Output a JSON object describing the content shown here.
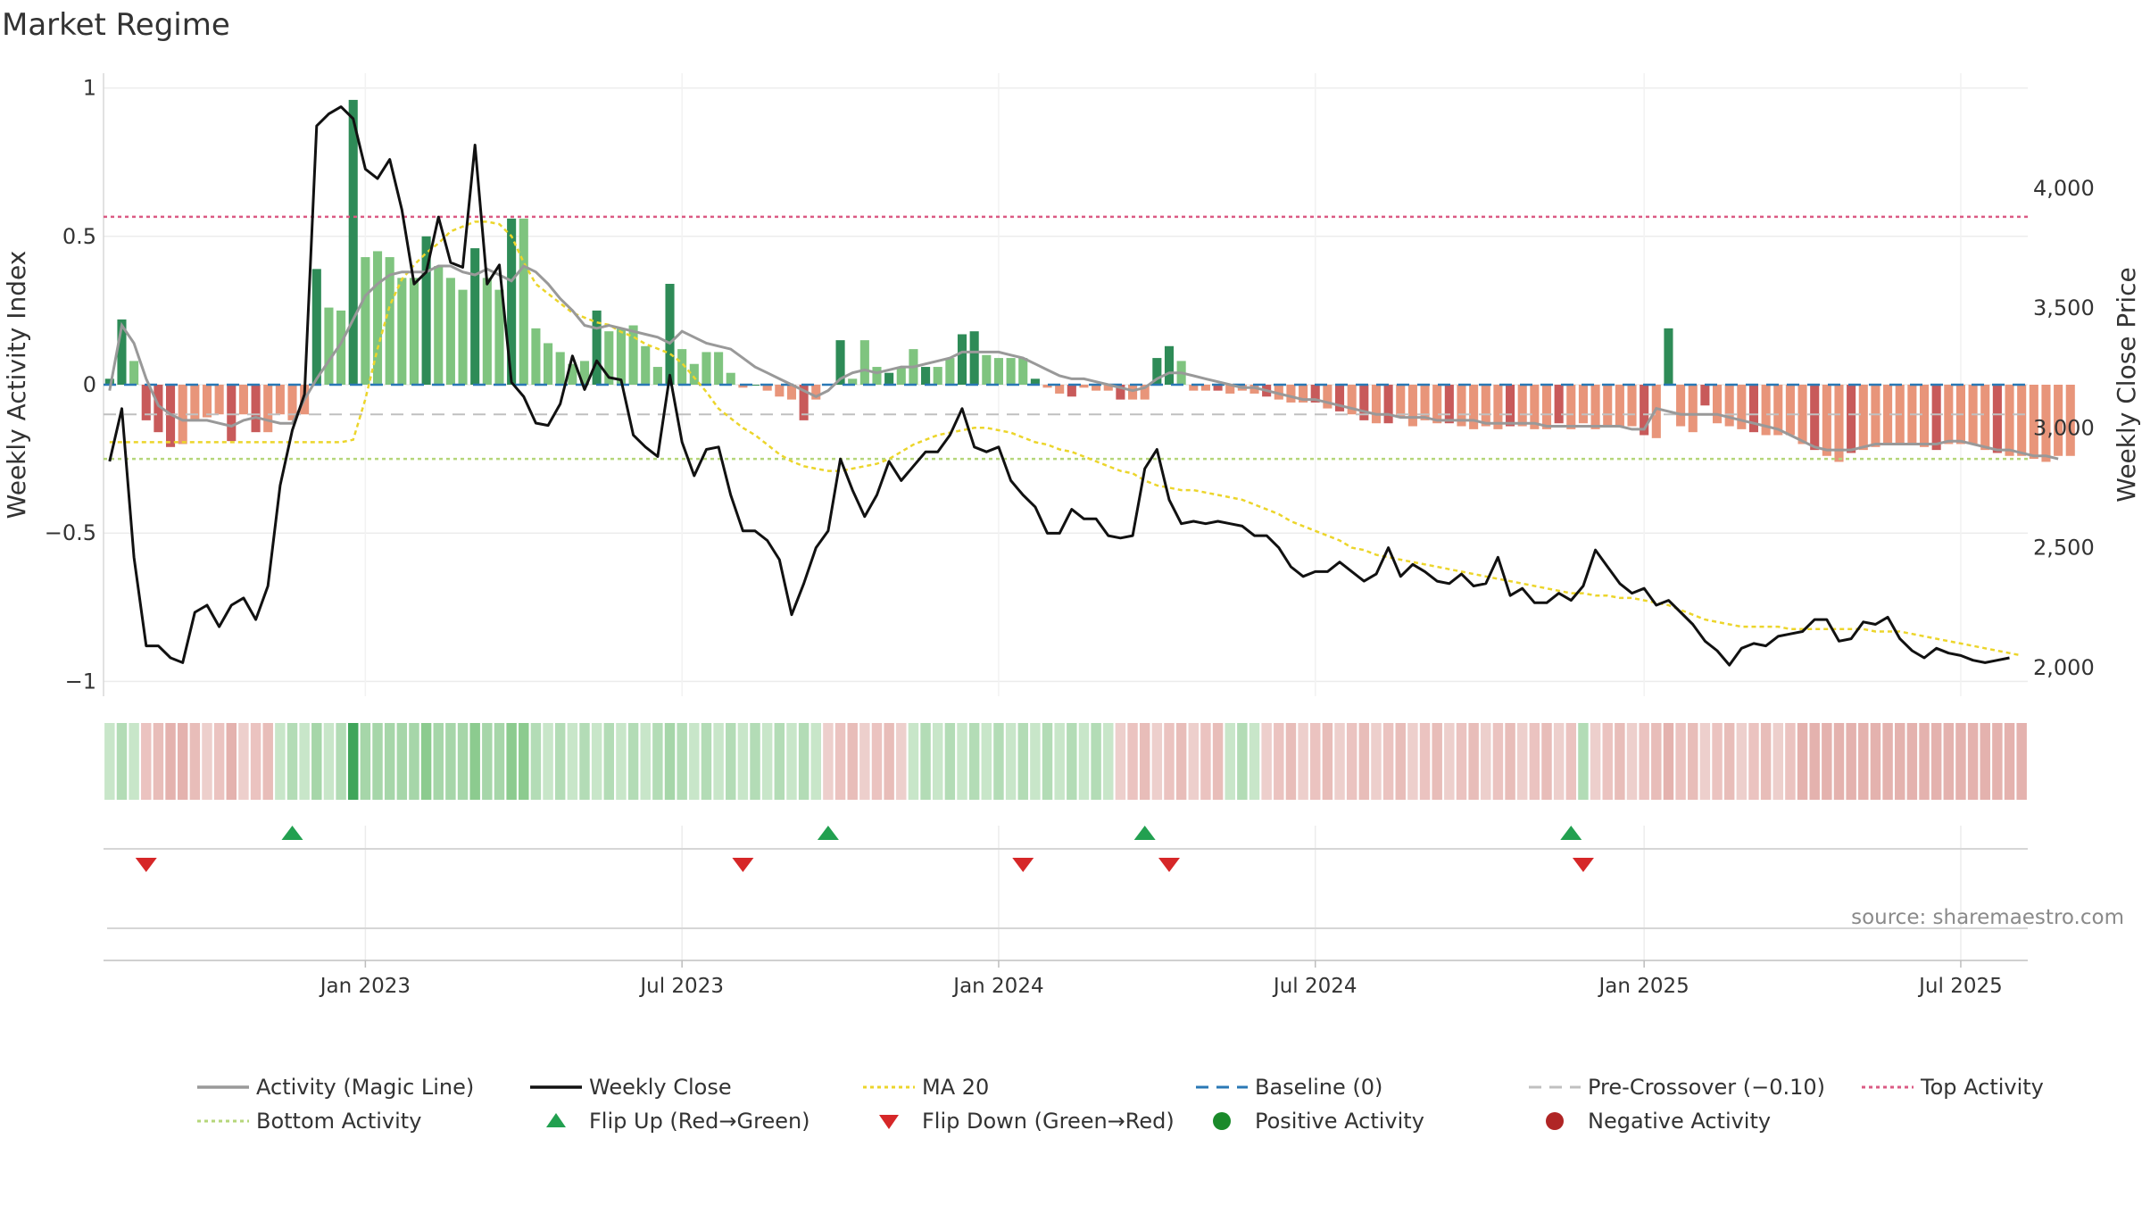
{
  "title": "Market Regime",
  "source": "source: sharemaestro.com",
  "chart_data": {
    "type": "bar",
    "ylabel": "Weekly Activity Index",
    "ylabel_right": "Weekly Close Price",
    "ylim": [
      -1.05,
      1.05
    ],
    "ylim_right": [
      1880,
      4480
    ],
    "yticks": [
      {
        "label": "1",
        "value": 1
      },
      {
        "label": "0.5",
        "value": 0.5
      },
      {
        "label": "0",
        "value": 0
      },
      {
        "label": "−0.5",
        "value": -0.5
      },
      {
        "label": "−1",
        "value": -1
      }
    ],
    "yticks_right": [
      {
        "label": "4,000",
        "value": 4000
      },
      {
        "label": "3,500",
        "value": 3500
      },
      {
        "label": "3,000",
        "value": 3000
      },
      {
        "label": "2,500",
        "value": 2500
      },
      {
        "label": "2,000",
        "value": 2000
      }
    ],
    "xticks": [
      {
        "label": "Jan 2023",
        "week": 21
      },
      {
        "label": "Jul 2023",
        "week": 47
      },
      {
        "label": "Jan 2024",
        "week": 73
      },
      {
        "label": "Jul 2024",
        "week": 99
      },
      {
        "label": "Jan 2025",
        "week": 126
      },
      {
        "label": "Jul 2025",
        "week": 152
      }
    ],
    "grid": true,
    "legend_position": "bottom",
    "weeks": 158,
    "activity": [
      0.02,
      0.22,
      0.08,
      -0.12,
      -0.16,
      -0.21,
      -0.2,
      -0.12,
      -0.11,
      -0.1,
      -0.19,
      -0.1,
      -0.16,
      -0.16,
      -0.1,
      -0.12,
      -0.1,
      0.39,
      0.26,
      0.25,
      0.96,
      0.43,
      0.45,
      0.43,
      0.36,
      0.36,
      0.5,
      0.4,
      0.36,
      0.32,
      0.46,
      0.36,
      0.32,
      0.56,
      0.56,
      0.19,
      0.14,
      0.11,
      0.07,
      0.08,
      0.25,
      0.18,
      0.19,
      0.2,
      0.13,
      0.06,
      0.34,
      0.12,
      0.07,
      0.11,
      0.11,
      0.04,
      -0.01,
      0.0,
      -0.02,
      -0.04,
      -0.05,
      -0.12,
      -0.05,
      0.0,
      0.15,
      0.02,
      0.15,
      0.06,
      0.04,
      0.06,
      0.12,
      0.06,
      0.06,
      0.09,
      0.17,
      0.18,
      0.1,
      0.09,
      0.09,
      0.09,
      0.02,
      -0.01,
      -0.03,
      -0.04,
      -0.01,
      -0.02,
      -0.02,
      -0.05,
      -0.05,
      -0.05,
      0.09,
      0.13,
      0.08,
      -0.02,
      -0.02,
      -0.02,
      -0.03,
      -0.02,
      -0.03,
      -0.04,
      -0.05,
      -0.06,
      -0.06,
      -0.06,
      -0.08,
      -0.09,
      -0.1,
      -0.12,
      -0.13,
      -0.13,
      -0.11,
      -0.14,
      -0.12,
      -0.13,
      -0.13,
      -0.14,
      -0.15,
      -0.14,
      -0.15,
      -0.14,
      -0.14,
      -0.15,
      -0.15,
      -0.13,
      -0.15,
      -0.13,
      -0.15,
      -0.14,
      -0.14,
      -0.14,
      -0.17,
      -0.18,
      0.19,
      -0.14,
      -0.16,
      -0.07,
      -0.13,
      -0.14,
      -0.15,
      -0.16,
      -0.17,
      -0.17,
      -0.17,
      -0.2,
      -0.22,
      -0.24,
      -0.26,
      -0.23,
      -0.22,
      -0.21,
      -0.2,
      -0.2,
      -0.2,
      -0.21,
      -0.22,
      -0.2,
      -0.2,
      -0.2,
      -0.22,
      -0.23,
      -0.24,
      -0.24,
      -0.25,
      -0.26,
      -0.24,
      -0.24
    ],
    "activity_colors": {
      "strong_positive": "#2e8b57",
      "weak_positive": "#7fc47f",
      "strong_negative": "#c85a5a",
      "weak_negative": "#e8957a"
    },
    "strong_weeks": [
      0,
      1,
      3,
      4,
      5,
      10,
      12,
      17,
      20,
      26,
      30,
      33,
      40,
      46,
      53,
      57,
      60,
      64,
      67,
      70,
      71,
      76,
      79,
      83,
      86,
      87,
      91,
      95,
      99,
      101,
      103,
      105,
      110,
      115,
      119,
      126,
      128,
      131,
      135,
      140,
      143,
      150,
      155
    ],
    "magic_line": [
      -0.02,
      0.2,
      0.14,
      0.02,
      -0.07,
      -0.1,
      -0.12,
      -0.12,
      -0.12,
      -0.13,
      -0.14,
      -0.12,
      -0.11,
      -0.12,
      -0.13,
      -0.13,
      -0.05,
      0.02,
      0.08,
      0.14,
      0.22,
      0.3,
      0.34,
      0.37,
      0.38,
      0.38,
      0.38,
      0.4,
      0.4,
      0.38,
      0.37,
      0.39,
      0.37,
      0.35,
      0.4,
      0.38,
      0.34,
      0.29,
      0.25,
      0.2,
      0.19,
      0.2,
      0.19,
      0.18,
      0.17,
      0.16,
      0.14,
      0.18,
      0.16,
      0.14,
      0.13,
      0.12,
      0.09,
      0.06,
      0.04,
      0.02,
      0.0,
      -0.02,
      -0.04,
      -0.02,
      0.02,
      0.04,
      0.05,
      0.04,
      0.05,
      0.06,
      0.06,
      0.07,
      0.08,
      0.09,
      0.11,
      0.11,
      0.11,
      0.11,
      0.1,
      0.09,
      0.07,
      0.05,
      0.03,
      0.02,
      0.02,
      0.01,
      0.0,
      -0.01,
      -0.02,
      -0.01,
      0.02,
      0.04,
      0.04,
      0.03,
      0.02,
      0.01,
      0.0,
      -0.01,
      -0.01,
      -0.02,
      -0.03,
      -0.04,
      -0.05,
      -0.05,
      -0.06,
      -0.07,
      -0.08,
      -0.09,
      -0.1,
      -0.1,
      -0.11,
      -0.11,
      -0.11,
      -0.12,
      -0.12,
      -0.12,
      -0.12,
      -0.13,
      -0.13,
      -0.13,
      -0.13,
      -0.13,
      -0.14,
      -0.14,
      -0.14,
      -0.14,
      -0.14,
      -0.14,
      -0.14,
      -0.15,
      -0.15,
      -0.08,
      -0.09,
      -0.1,
      -0.1,
      -0.1,
      -0.1,
      -0.11,
      -0.12,
      -0.13,
      -0.14,
      -0.15,
      -0.17,
      -0.19,
      -0.21,
      -0.22,
      -0.22,
      -0.22,
      -0.21,
      -0.2,
      -0.2,
      -0.2,
      -0.2,
      -0.2,
      -0.2,
      -0.19,
      -0.19,
      -0.2,
      -0.21,
      -0.22,
      -0.22,
      -0.23,
      -0.24,
      -0.24,
      -0.25
    ],
    "weekly_close": [
      2860,
      3080,
      2460,
      2090,
      2090,
      2040,
      2020,
      2230,
      2260,
      2170,
      2260,
      2290,
      2200,
      2340,
      2760,
      2990,
      3140,
      4260,
      4310,
      4340,
      4290,
      4080,
      4040,
      4120,
      3910,
      3600,
      3650,
      3880,
      3690,
      3670,
      4180,
      3600,
      3680,
      3190,
      3130,
      3020,
      3010,
      3100,
      3300,
      3160,
      3280,
      3210,
      3200,
      2970,
      2920,
      2880,
      3220,
      2940,
      2800,
      2910,
      2920,
      2720,
      2570,
      2570,
      2530,
      2450,
      2220,
      2350,
      2500,
      2570,
      2870,
      2740,
      2630,
      2720,
      2860,
      2780,
      2840,
      2900,
      2900,
      2970,
      3080,
      2920,
      2900,
      2920,
      2780,
      2720,
      2670,
      2560,
      2560,
      2660,
      2620,
      2620,
      2550,
      2540,
      2550,
      2830,
      2910,
      2700,
      2600,
      2610,
      2600,
      2610,
      2600,
      2590,
      2550,
      2550,
      2500,
      2420,
      2380,
      2400,
      2400,
      2440,
      2400,
      2360,
      2390,
      2500,
      2380,
      2430,
      2400,
      2360,
      2350,
      2390,
      2340,
      2350,
      2460,
      2300,
      2330,
      2270,
      2270,
      2310,
      2280,
      2340,
      2490,
      2420,
      2350,
      2310,
      2330,
      2260,
      2280,
      2230,
      2180,
      2110,
      2070,
      2010,
      2080,
      2100,
      2090,
      2130,
      2140,
      2150,
      2200,
      2200,
      2110,
      2120,
      2190,
      2180,
      2210,
      2120,
      2070,
      2040,
      2080,
      2060,
      2050,
      2030,
      2020,
      2030,
      2040
    ],
    "ma20": [
      2940,
      2940,
      2940,
      2940,
      2940,
      2940,
      2940,
      2940,
      2940,
      2940,
      2940,
      2940,
      2940,
      2940,
      2940,
      2940,
      2940,
      2940,
      2940,
      2940,
      2950,
      3120,
      3330,
      3510,
      3620,
      3680,
      3730,
      3770,
      3820,
      3840,
      3860,
      3860,
      3850,
      3800,
      3690,
      3600,
      3560,
      3520,
      3480,
      3460,
      3440,
      3430,
      3400,
      3380,
      3350,
      3330,
      3310,
      3270,
      3210,
      3150,
      3080,
      3040,
      3000,
      2970,
      2930,
      2890,
      2860,
      2840,
      2830,
      2820,
      2820,
      2830,
      2840,
      2850,
      2870,
      2900,
      2930,
      2950,
      2970,
      2980,
      2990,
      3000,
      3000,
      2990,
      2980,
      2960,
      2940,
      2930,
      2910,
      2900,
      2880,
      2860,
      2840,
      2820,
      2810,
      2780,
      2760,
      2750,
      2740,
      2740,
      2730,
      2720,
      2710,
      2700,
      2680,
      2660,
      2640,
      2610,
      2590,
      2570,
      2550,
      2530,
      2500,
      2490,
      2470,
      2460,
      2450,
      2440,
      2430,
      2420,
      2410,
      2400,
      2390,
      2380,
      2370,
      2360,
      2350,
      2340,
      2330,
      2320,
      2310,
      2310,
      2300,
      2300,
      2290,
      2290,
      2280,
      2270,
      2260,
      2240,
      2220,
      2200,
      2190,
      2180,
      2170,
      2170,
      2170,
      2170,
      2160,
      2160,
      2160,
      2160,
      2160,
      2160,
      2160,
      2150,
      2150,
      2150,
      2140,
      2130,
      2120,
      2110,
      2100,
      2090,
      2080,
      2070,
      2060,
      2050
    ],
    "baseline": 0,
    "pre_crossover": -0.1,
    "top_activity": 0.566,
    "bottom_activity": -0.25,
    "regime_strip": [
      {
        "from": 0,
        "to": 3,
        "state": "positive"
      },
      {
        "from": 3,
        "to": 14,
        "state": "negative"
      },
      {
        "from": 14,
        "to": 59,
        "state": "positive"
      },
      {
        "from": 59,
        "to": 66,
        "state": "negative"
      },
      {
        "from": 66,
        "to": 83,
        "state": "positive"
      },
      {
        "from": 83,
        "to": 92,
        "state": "negative"
      },
      {
        "from": 92,
        "to": 95,
        "state": "positive"
      },
      {
        "from": 95,
        "to": 121,
        "state": "negative"
      },
      {
        "from": 121,
        "to": 122,
        "state": "positive"
      },
      {
        "from": 122,
        "to": 158,
        "state": "negative"
      }
    ],
    "flip_up_weeks": [
      15,
      59,
      85,
      120
    ],
    "flip_down_weeks": [
      3,
      52,
      75,
      87,
      121
    ],
    "colors": {
      "magic_line": "#999999",
      "weekly_close": "#111111",
      "ma20": "#ecd52b",
      "baseline": "#2a78b5",
      "pre_crossover": "#c0c0c0",
      "top_activity": "#db5b84",
      "bottom_activity": "#b5d67a",
      "flip_up": "#22a050",
      "flip_down": "#d62728",
      "positive_activity": "#1a8a2a",
      "negative_activity": "#b02525"
    }
  },
  "legend": [
    {
      "label": "Activity (Magic Line)",
      "symbol": "line-gray"
    },
    {
      "label": "Weekly Close",
      "symbol": "line-black"
    },
    {
      "label": "MA 20",
      "symbol": "dotted-yellow"
    },
    {
      "label": "Baseline (0)",
      "symbol": "dashed-blue"
    },
    {
      "label": "Pre-Crossover (−0.10)",
      "symbol": "dashed-gray"
    },
    {
      "label": "Top Activity",
      "symbol": "dotted-pink"
    },
    {
      "label": "Bottom Activity",
      "symbol": "dotted-lightgreen"
    },
    {
      "label": "Flip Up (Red→Green)",
      "symbol": "triangle-up-green"
    },
    {
      "label": "Flip Down (Green→Red)",
      "symbol": "triangle-down-red"
    },
    {
      "label": "Positive Activity",
      "symbol": "circle-green"
    },
    {
      "label": "Negative Activity",
      "symbol": "circle-darkred"
    }
  ]
}
